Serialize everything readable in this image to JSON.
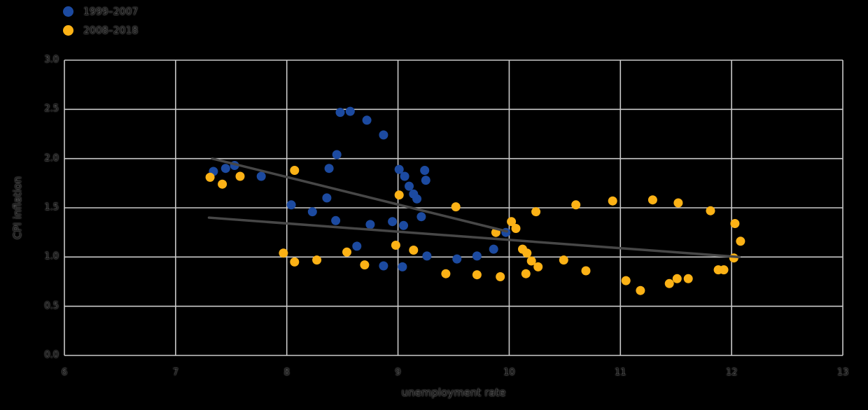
{
  "legend": {
    "items": [
      {
        "label": "1999–2007",
        "color": "#1c4aa0"
      },
      {
        "label": "2008–2018",
        "color": "#fcb216"
      }
    ]
  },
  "chart_data": {
    "type": "scatter",
    "title": "",
    "xlabel": "unemployment rate",
    "ylabel": "CPI inflation",
    "xlim": [
      6,
      13
    ],
    "ylim": [
      0.0,
      3.0
    ],
    "x_ticks": [
      "6",
      "7",
      "8",
      "9",
      "10",
      "11",
      "12",
      "13"
    ],
    "y_ticks": [
      "0.0",
      "0.5",
      "1.0",
      "1.5",
      "2.0",
      "2.5",
      "3.0"
    ],
    "grid": true,
    "legend_position": "top-left",
    "background_color": "#000000",
    "gridline_color": "#c9c9c9",
    "trend_line_color": "#474747",
    "marker_radius": 6.5,
    "series": [
      {
        "name": "1999–2007",
        "color": "#1c4aa0",
        "points": [
          [
            7.34,
            1.87
          ],
          [
            7.45,
            1.9
          ],
          [
            7.53,
            1.93
          ],
          [
            7.77,
            1.82
          ],
          [
            8.38,
            1.9
          ],
          [
            8.45,
            2.04
          ],
          [
            8.48,
            2.47
          ],
          [
            8.57,
            2.48
          ],
          [
            8.72,
            2.39
          ],
          [
            8.87,
            2.24
          ],
          [
            9.01,
            1.89
          ],
          [
            9.06,
            1.82
          ],
          [
            9.1,
            1.72
          ],
          [
            9.14,
            1.64
          ],
          [
            9.17,
            1.59
          ],
          [
            9.24,
            1.88
          ],
          [
            9.25,
            1.78
          ],
          [
            9.21,
            1.41
          ],
          [
            8.95,
            1.36
          ],
          [
            9.05,
            1.32
          ],
          [
            8.44,
            1.37
          ],
          [
            8.75,
            1.33
          ],
          [
            8.63,
            1.11
          ],
          [
            8.04,
            1.53
          ],
          [
            8.23,
            1.46
          ],
          [
            8.36,
            1.6
          ],
          [
            8.87,
            0.91
          ],
          [
            9.04,
            0.9
          ],
          [
            9.26,
            1.01
          ],
          [
            9.53,
            0.98
          ],
          [
            9.71,
            1.01
          ],
          [
            9.86,
            1.08
          ],
          [
            9.97,
            1.25
          ]
        ]
      },
      {
        "name": "2008–2018",
        "color": "#fcb216",
        "points": [
          [
            7.31,
            1.81
          ],
          [
            7.42,
            1.74
          ],
          [
            7.58,
            1.82
          ],
          [
            8.07,
            1.88
          ],
          [
            9.01,
            1.63
          ],
          [
            9.52,
            1.51
          ],
          [
            10.24,
            1.46
          ],
          [
            10.6,
            1.53
          ],
          [
            10.93,
            1.57
          ],
          [
            11.29,
            1.58
          ],
          [
            11.52,
            1.55
          ],
          [
            11.81,
            1.47
          ],
          [
            12.03,
            1.34
          ],
          [
            12.08,
            1.16
          ],
          [
            12.02,
            0.99
          ],
          [
            11.88,
            0.87
          ],
          [
            11.93,
            0.87
          ],
          [
            11.61,
            0.78
          ],
          [
            11.51,
            0.78
          ],
          [
            11.44,
            0.73
          ],
          [
            11.18,
            0.66
          ],
          [
            11.05,
            0.76
          ],
          [
            10.69,
            0.86
          ],
          [
            10.49,
            0.97
          ],
          [
            10.26,
            0.9
          ],
          [
            10.15,
            0.83
          ],
          [
            10.12,
            1.08
          ],
          [
            10.16,
            1.04
          ],
          [
            10.2,
            0.96
          ],
          [
            10.06,
            1.29
          ],
          [
            10.02,
            1.36
          ],
          [
            9.88,
            1.25
          ],
          [
            8.98,
            1.12
          ],
          [
            9.14,
            1.07
          ],
          [
            9.43,
            0.83
          ],
          [
            9.71,
            0.82
          ],
          [
            9.92,
            0.8
          ],
          [
            7.97,
            1.04
          ],
          [
            8.07,
            0.95
          ],
          [
            8.27,
            0.97
          ],
          [
            8.54,
            1.05
          ],
          [
            8.7,
            0.92
          ]
        ]
      }
    ],
    "trend_lines": [
      {
        "for": "1999–2007",
        "x1": 7.33,
        "y1": 2.0,
        "x2": 9.98,
        "y2": 1.26
      },
      {
        "for": "2008–2018",
        "x1": 7.3,
        "y1": 1.4,
        "x2": 12.07,
        "y2": 1.0
      }
    ]
  }
}
